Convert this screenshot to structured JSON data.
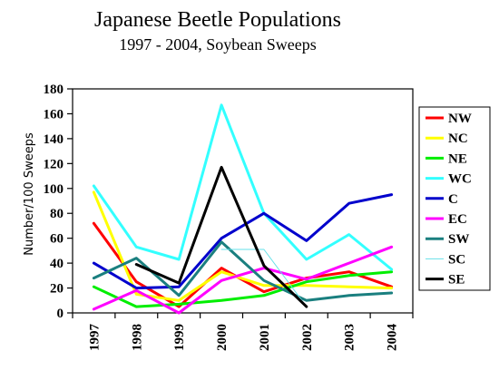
{
  "chart_data": {
    "type": "line",
    "title": "Japanese Beetle Populations",
    "subtitle": "1997 - 2004, Soybean Sweeps",
    "ylabel": "Number/100 Sweeps",
    "xlabel": "",
    "categories": [
      "1997",
      "1998",
      "1999",
      "2000",
      "2001",
      "2002",
      "2003",
      "2004"
    ],
    "ylim": [
      0,
      180
    ],
    "yticks": [
      0,
      20,
      40,
      60,
      80,
      100,
      120,
      140,
      160,
      180
    ],
    "grid": false,
    "legend_position": "right",
    "series": [
      {
        "name": "NW",
        "color": "#ff0000",
        "width": 3,
        "values": [
          72,
          25,
          5,
          36,
          17,
          28,
          33,
          21
        ]
      },
      {
        "name": "NC",
        "color": "#ffff00",
        "width": 3,
        "values": [
          97,
          15,
          10,
          33,
          22,
          22,
          21,
          20
        ]
      },
      {
        "name": "NE",
        "color": "#00ee00",
        "width": 3,
        "values": [
          21,
          5,
          7,
          10,
          14,
          25,
          30,
          33
        ]
      },
      {
        "name": "WC",
        "color": "#33ffff",
        "width": 3,
        "values": [
          102,
          53,
          43,
          167,
          80,
          43,
          63,
          35
        ]
      },
      {
        "name": "C",
        "color": "#0000cc",
        "width": 3,
        "values": [
          40,
          20,
          21,
          60,
          80,
          58,
          88,
          95
        ]
      },
      {
        "name": "EC",
        "color": "#ff00ff",
        "width": 3,
        "values": [
          3,
          18,
          0,
          26,
          36,
          27,
          40,
          53
        ]
      },
      {
        "name": "SW",
        "color": "#1a7f7f",
        "width": 3,
        "values": [
          28,
          44,
          14,
          57,
          26,
          10,
          14,
          16
        ]
      },
      {
        "name": "SC",
        "color": "#66e0e8",
        "width": 1,
        "values": [
          null,
          null,
          null,
          51,
          51,
          5,
          null,
          null
        ]
      },
      {
        "name": "SE",
        "color": "#000000",
        "width": 3,
        "values": [
          null,
          39,
          24,
          117,
          38,
          5,
          null,
          null
        ]
      }
    ]
  }
}
